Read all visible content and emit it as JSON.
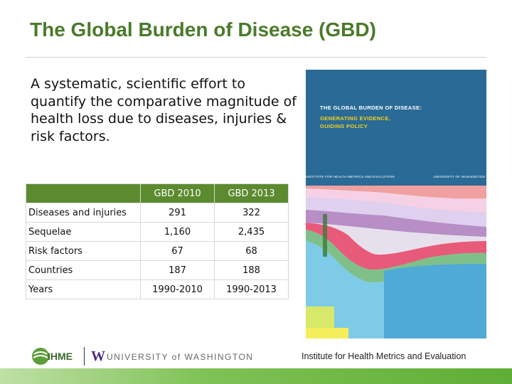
{
  "title": "The Global Burden of Disease (GBD)",
  "description": "A systematic, scientific effort to quantify the comparative magnitude of health loss due to diseases, injuries & risk factors.",
  "table": {
    "headers": [
      "",
      "GBD 2010",
      "GBD 2013"
    ],
    "rows": [
      {
        "label": "Diseases and injuries",
        "gbd2010": "291",
        "gbd2013": "322"
      },
      {
        "label": "Sequelae",
        "gbd2010": "1,160",
        "gbd2013": "2,435"
      },
      {
        "label": "Risk factors",
        "gbd2010": "67",
        "gbd2013": "68"
      },
      {
        "label": "Countries",
        "gbd2010": "187",
        "gbd2013": "188"
      },
      {
        "label": "Years",
        "gbd2010": "1990-2010",
        "gbd2013": "1990-2013"
      }
    ]
  },
  "cover": {
    "title": "THE GLOBAL BURDEN OF DISEASE:",
    "subtitle_line1": "GENERATING EVIDENCE,",
    "subtitle_line2": "GUIDING POLICY",
    "institute": "INSTITUTE FOR HEALTH METRICS AND EVALUATION",
    "university": "UNIVERSITY OF WASHINGTON"
  },
  "footer": {
    "ihme": "IHME",
    "uw_mark": "W",
    "uw_name": "UNIVERSITY of WASHINGTON",
    "institute": "Institute for Health Metrics and Evaluation"
  },
  "colors": {
    "title": "#4a7a2a",
    "table_header": "#5b8a2f",
    "cover_blue": "#2a6a96",
    "cover_yellow": "#f2d21a"
  }
}
